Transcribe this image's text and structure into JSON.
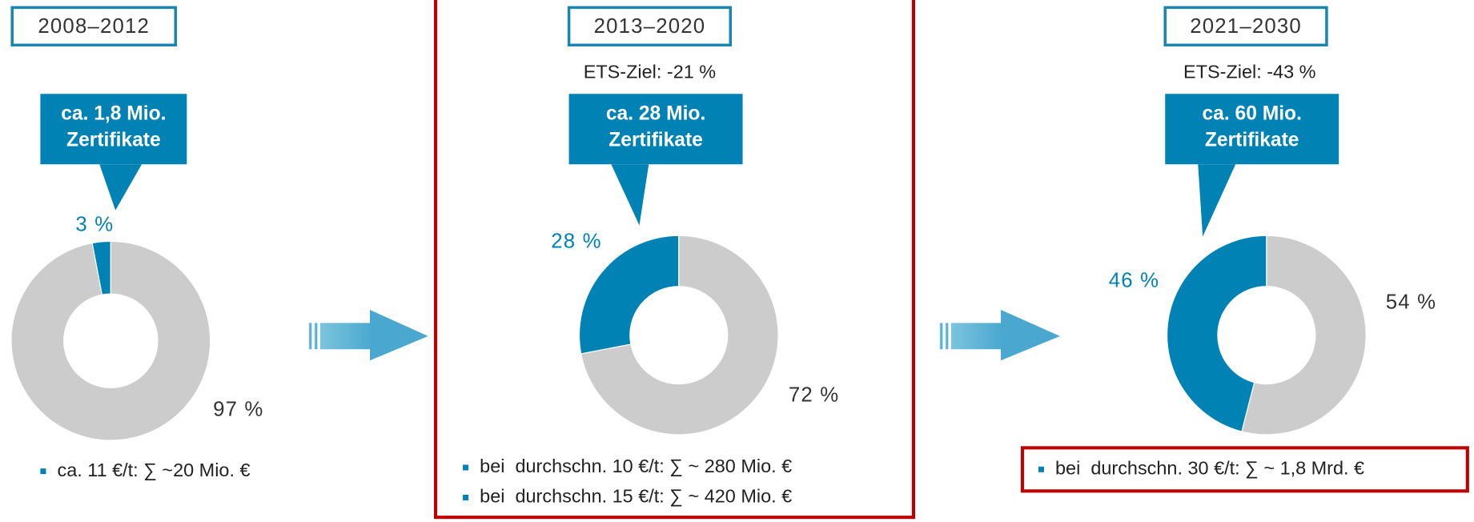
{
  "chart_data": [
    {
      "type": "donut",
      "title": "2008–2012",
      "annotation": [
        "ca. 1,8 Mio.",
        "Zertifikate"
      ],
      "values": [
        3,
        97
      ],
      "value_labels": [
        "3 %",
        "97 %"
      ],
      "colors": [
        "#0082b4",
        "#cccccc"
      ],
      "notes": [
        "ca. 11 €/t: ∑ ~20 Mio. €"
      ]
    },
    {
      "type": "donut",
      "title": "2013–2020",
      "subtitle": "ETS-Ziel: -21 %",
      "annotation": [
        "ca. 28 Mio.",
        "Zertifikate"
      ],
      "values": [
        28,
        72
      ],
      "value_labels": [
        "28 %",
        "72 %"
      ],
      "colors": [
        "#0082b4",
        "#cccccc"
      ],
      "notes": [
        "bei  durchschn. 10 €/t: ∑ ~ 280 Mio. €",
        "bei  durchschn. 15 €/t: ∑ ~ 420 Mio. €"
      ]
    },
    {
      "type": "donut",
      "title": "2021–2030",
      "subtitle": "ETS-Ziel: -43 %",
      "annotation": [
        "ca. 60 Mio.",
        "Zertifikate"
      ],
      "values": [
        46,
        54
      ],
      "value_labels": [
        "46 %",
        "54 %"
      ],
      "colors": [
        "#0082b4",
        "#cccccc"
      ],
      "notes": [
        "bei  durchschn. 30 €/t: ∑ ~ 1,8 Mrd. €"
      ]
    }
  ]
}
